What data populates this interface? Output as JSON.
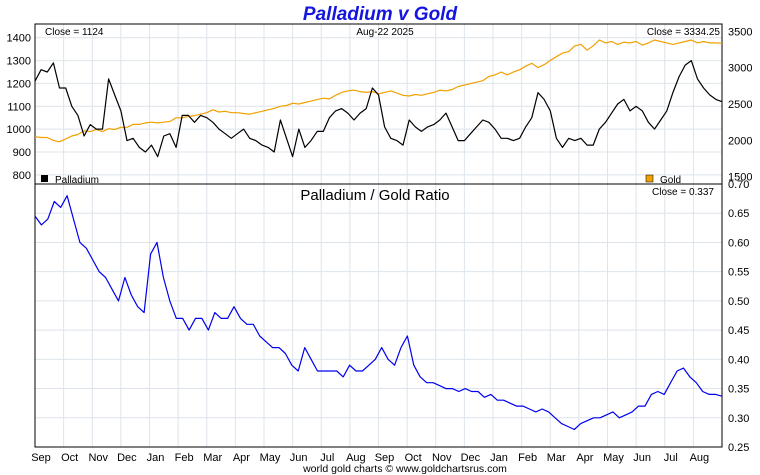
{
  "chart_data": [
    {
      "type": "line",
      "title": "Palladium v Gold",
      "date_label": "Aug-22  2025",
      "ylim_left": [
        760,
        1460
      ],
      "ylim_right": [
        1400,
        3600
      ],
      "left_ticks": [
        "800",
        "900",
        "1000",
        "1100",
        "1200",
        "1300",
        "1400"
      ],
      "right_ticks": [
        "1500",
        "2000",
        "2500",
        "3000",
        "3500"
      ],
      "close_left": "Close = 1124",
      "close_right": "Close = 3334.25",
      "grid": true,
      "series": [
        {
          "name": "Palladium",
          "axis": "left",
          "color": "#000000",
          "legend_position": "bottom-left",
          "values": [
            1210,
            1260,
            1250,
            1290,
            1180,
            1180,
            1100,
            1060,
            970,
            1020,
            1000,
            1000,
            1220,
            1150,
            1080,
            950,
            960,
            920,
            900,
            930,
            880,
            970,
            980,
            920,
            1060,
            1060,
            1030,
            1060,
            1050,
            1030,
            1000,
            980,
            960,
            980,
            1000,
            960,
            950,
            930,
            920,
            900,
            1040,
            960,
            880,
            1000,
            920,
            950,
            990,
            990,
            1050,
            1080,
            1090,
            1070,
            1040,
            1070,
            1090,
            1180,
            1150,
            1010,
            960,
            950,
            930,
            1040,
            1010,
            990,
            1010,
            1020,
            1040,
            1070,
            1010,
            950,
            950,
            980,
            1010,
            1040,
            1030,
            1000,
            960,
            960,
            950,
            960,
            1010,
            1050,
            1160,
            1130,
            1080,
            960,
            920,
            960,
            950,
            960,
            930,
            930,
            1000,
            1030,
            1070,
            1110,
            1130,
            1080,
            1100,
            1080,
            1030,
            1000,
            1040,
            1080,
            1160,
            1230,
            1280,
            1300,
            1220,
            1180,
            1150,
            1130,
            1120
          ]
        },
        {
          "name": "Gold",
          "axis": "right",
          "color": "#f0a000",
          "legend_position": "bottom-right",
          "values": [
            2050,
            2040,
            2040,
            2000,
            1980,
            2020,
            2060,
            2080,
            2130,
            2120,
            2150,
            2120,
            2160,
            2150,
            2180,
            2180,
            2220,
            2220,
            2240,
            2250,
            2240,
            2250,
            2260,
            2310,
            2310,
            2330,
            2340,
            2360,
            2380,
            2420,
            2390,
            2400,
            2380,
            2380,
            2370,
            2360,
            2380,
            2400,
            2420,
            2440,
            2470,
            2480,
            2510,
            2500,
            2520,
            2540,
            2560,
            2580,
            2570,
            2620,
            2660,
            2680,
            2690,
            2670,
            2660,
            2670,
            2640,
            2660,
            2680,
            2650,
            2620,
            2610,
            2630,
            2620,
            2640,
            2660,
            2690,
            2680,
            2700,
            2740,
            2760,
            2780,
            2800,
            2820,
            2880,
            2900,
            2940,
            2900,
            2940,
            2970,
            3020,
            3060,
            3000,
            3040,
            3100,
            3150,
            3200,
            3220,
            3300,
            3320,
            3240,
            3300,
            3380,
            3340,
            3360,
            3320,
            3350,
            3340,
            3360,
            3310,
            3340,
            3380,
            3360,
            3340,
            3320,
            3340,
            3360,
            3380,
            3340,
            3360,
            3340,
            3340,
            3334
          ]
        }
      ]
    },
    {
      "type": "line",
      "title": "Palladium  /  Gold Ratio",
      "close": "Close = 0.337",
      "ylim": [
        0.25,
        0.7
      ],
      "yticks": [
        "0.25",
        "0.30",
        "0.35",
        "0.40",
        "0.45",
        "0.50",
        "0.55",
        "0.60",
        "0.65",
        "0.70"
      ],
      "x_labels": [
        "Sep",
        "Oct",
        "Nov",
        "Dec",
        "Jan",
        "Feb",
        "Mar",
        "Apr",
        "May",
        "Jun",
        "Jul",
        "Aug",
        "Sep",
        "Oct",
        "Nov",
        "Dec",
        "Jan",
        "Feb",
        "Mar",
        "Apr",
        "May",
        "Jun",
        "Jul",
        "Aug"
      ],
      "grid": true,
      "series": [
        {
          "name": "Ratio",
          "color": "#0000ee",
          "values": [
            0.645,
            0.63,
            0.64,
            0.67,
            0.66,
            0.68,
            0.64,
            0.6,
            0.59,
            0.57,
            0.55,
            0.54,
            0.52,
            0.5,
            0.54,
            0.51,
            0.49,
            0.48,
            0.58,
            0.6,
            0.54,
            0.5,
            0.47,
            0.47,
            0.45,
            0.47,
            0.47,
            0.45,
            0.48,
            0.47,
            0.47,
            0.49,
            0.47,
            0.46,
            0.46,
            0.44,
            0.43,
            0.42,
            0.42,
            0.41,
            0.39,
            0.38,
            0.42,
            0.4,
            0.38,
            0.38,
            0.38,
            0.38,
            0.37,
            0.39,
            0.38,
            0.38,
            0.39,
            0.4,
            0.42,
            0.4,
            0.39,
            0.42,
            0.44,
            0.39,
            0.37,
            0.36,
            0.36,
            0.355,
            0.35,
            0.35,
            0.345,
            0.35,
            0.345,
            0.345,
            0.335,
            0.34,
            0.33,
            0.33,
            0.325,
            0.32,
            0.32,
            0.315,
            0.31,
            0.315,
            0.31,
            0.3,
            0.29,
            0.285,
            0.28,
            0.29,
            0.295,
            0.3,
            0.3,
            0.305,
            0.31,
            0.3,
            0.305,
            0.31,
            0.32,
            0.32,
            0.34,
            0.345,
            0.34,
            0.36,
            0.38,
            0.385,
            0.37,
            0.36,
            0.345,
            0.34,
            0.34,
            0.337
          ]
        }
      ]
    }
  ],
  "footer": "world gold charts © www.goldchartsrus.com"
}
